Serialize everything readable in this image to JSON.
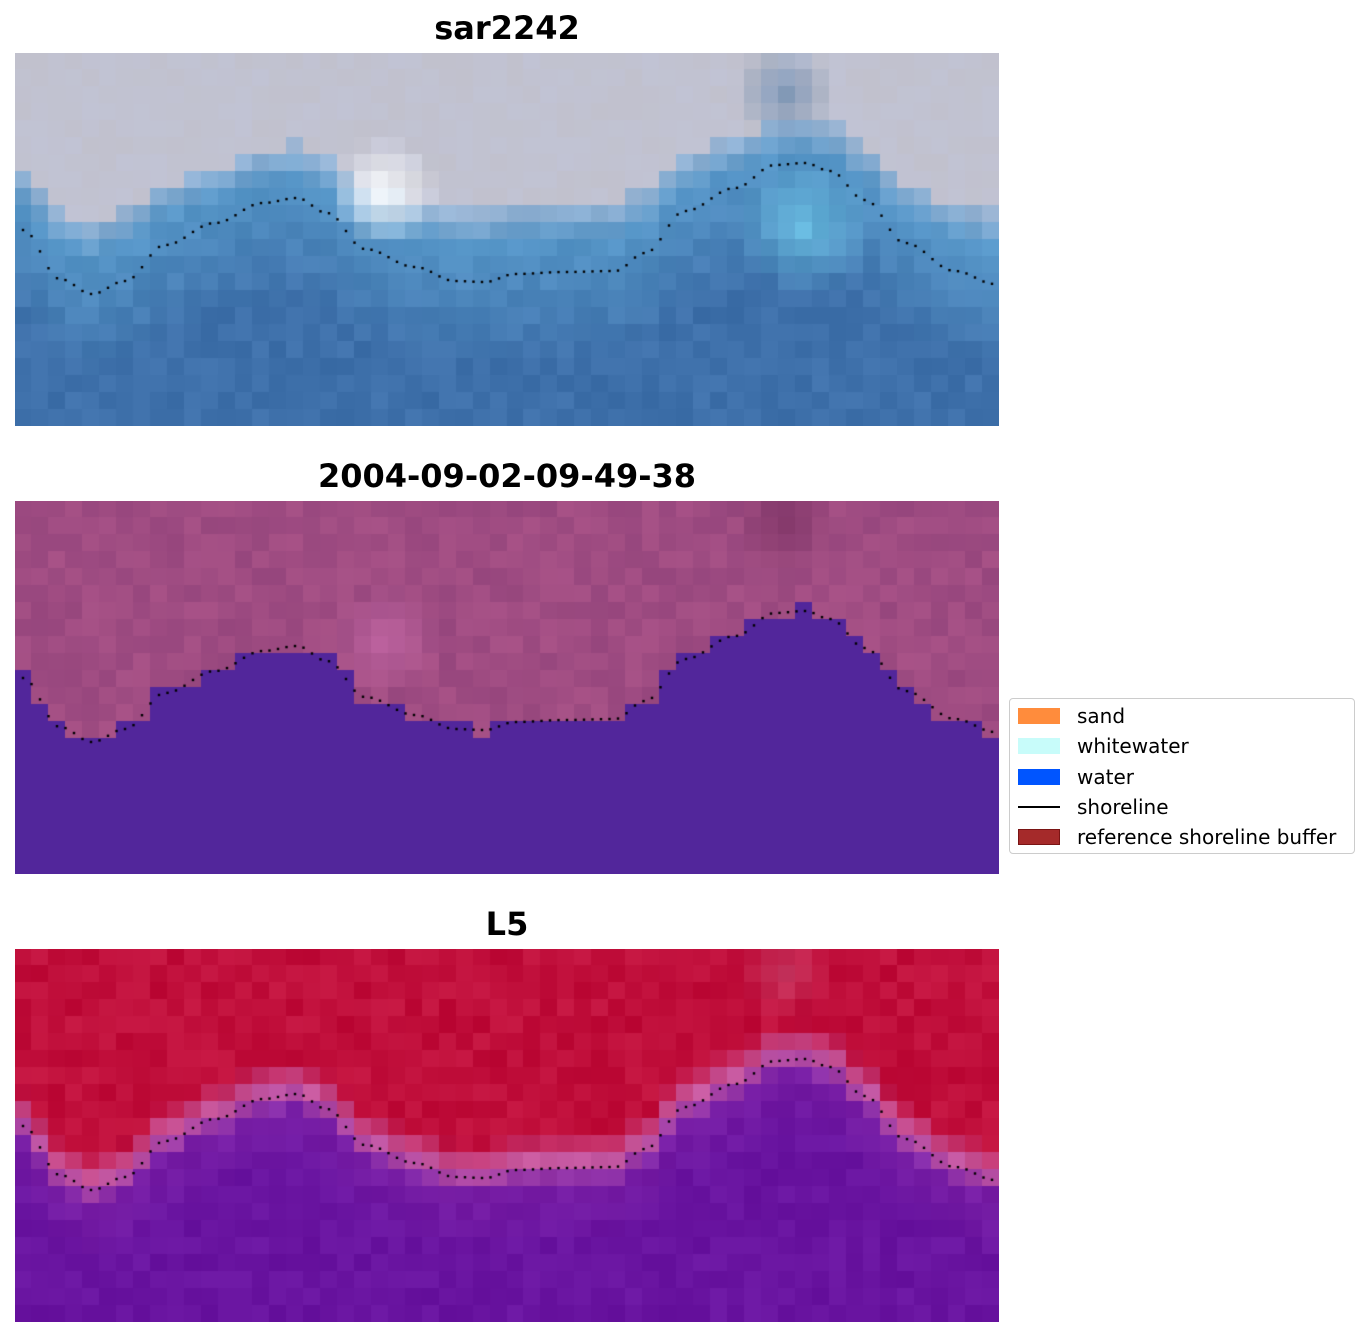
{
  "panels": [
    {
      "title": "sar2242",
      "style": "rgb"
    },
    {
      "title": "2004-09-02-09-49-38",
      "style": "classified"
    },
    {
      "title": "L5",
      "style": "probability"
    }
  ],
  "legend": {
    "items": [
      {
        "label": "sand",
        "kind": "patch",
        "color": "#ff8c3c",
        "border": "#ff8c3c"
      },
      {
        "label": "whitewater",
        "kind": "patch",
        "color": "#c8fcfa",
        "border": "#c8fcfa"
      },
      {
        "label": "water",
        "kind": "patch",
        "color": "#0055ff",
        "border": "#0055ff"
      },
      {
        "label": "shoreline",
        "kind": "line",
        "color": "#000000"
      },
      {
        "label": "reference shoreline buffer",
        "kind": "patch",
        "color": "#a52a2a",
        "border": "#7a1414"
      }
    ]
  }
}
